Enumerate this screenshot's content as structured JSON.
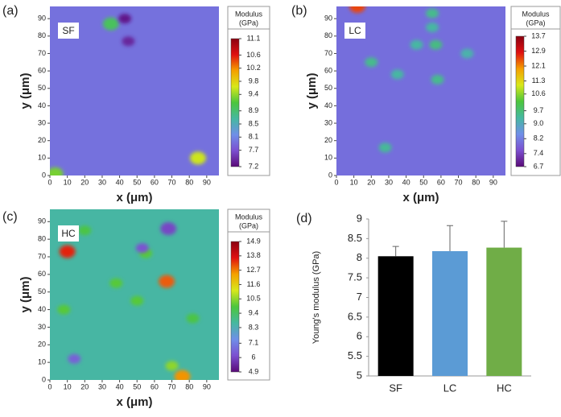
{
  "chart_data": [
    {
      "type": "heatmap",
      "panel_label": "(a)",
      "label": "SF",
      "xlabel": "x (μm)",
      "ylabel": "y (μm)",
      "xlim": [
        0,
        97
      ],
      "ylim": [
        0,
        97
      ],
      "xticks": [
        0,
        10,
        20,
        30,
        40,
        50,
        60,
        70,
        80,
        90
      ],
      "yticks": [
        0,
        10,
        20,
        30,
        40,
        50,
        60,
        70,
        80,
        90
      ],
      "colorbar_title": [
        "Modulus",
        "(GPa)"
      ],
      "clim": [
        7.2,
        11.1
      ],
      "colorbar_ticks": [
        7.2,
        7.7,
        8.1,
        8.5,
        8.9,
        9.4,
        9.8,
        10.2,
        10.6,
        11.1
      ],
      "colormap": [
        "#5a0a78",
        "#7b4fd0",
        "#6f8fe8",
        "#45b8a0",
        "#4cc63c",
        "#d8e81a",
        "#f5a000",
        "#e01010",
        "#8a0010"
      ],
      "base_value": 7.95,
      "spots": {
        "x": [
          35,
          43,
          45,
          85,
          3
        ],
        "y": [
          87,
          90,
          77,
          10,
          1
        ],
        "values": [
          9.0,
          7.3,
          7.4,
          9.6,
          9.3
        ]
      }
    },
    {
      "type": "heatmap",
      "panel_label": "(b)",
      "label": "LC",
      "xlabel": "x (μm)",
      "ylabel": "y (μm)",
      "xlim": [
        0,
        97
      ],
      "ylim": [
        0,
        97
      ],
      "xticks": [
        0,
        10,
        20,
        30,
        40,
        50,
        60,
        70,
        80,
        90
      ],
      "yticks": [
        0,
        10,
        20,
        30,
        40,
        50,
        60,
        70,
        80,
        90
      ],
      "colorbar_title": [
        "Modulus",
        "(GPa)"
      ],
      "clim": [
        6.7,
        13.7
      ],
      "colorbar_ticks": [
        6.7,
        7.4,
        8.2,
        {
          "value": 9,
          "label": "9.0"
        },
        9.7,
        10.6,
        11.3,
        12.1,
        12.9,
        13.7
      ],
      "colormap": [
        "#5a0a78",
        "#7b4fd0",
        "#6f8fe8",
        "#45b8a0",
        "#4cc63c",
        "#d8e81a",
        "#f5a000",
        "#e01010",
        "#8a0010"
      ],
      "base_value": 8.0,
      "spots": {
        "x": [
          12,
          55,
          46,
          57,
          55,
          20,
          35,
          58,
          75,
          28
        ],
        "y": [
          97,
          93,
          75,
          75,
          85,
          65,
          58,
          55,
          70,
          16
        ],
        "values": [
          12.5,
          9.5,
          9.3,
          9.6,
          9.3,
          9.5,
          9.3,
          9.5,
          9.2,
          9.4
        ]
      }
    },
    {
      "type": "heatmap",
      "panel_label": "(c)",
      "label": "HC",
      "xlabel": "x (μm)",
      "ylabel": "y (μm)",
      "xlim": [
        0,
        97
      ],
      "ylim": [
        0,
        97
      ],
      "xticks": [
        0,
        10,
        20,
        30,
        40,
        50,
        60,
        70,
        80,
        90
      ],
      "yticks": [
        0,
        10,
        20,
        30,
        40,
        50,
        60,
        70,
        80,
        90
      ],
      "colorbar_title": [
        "Modulus",
        "(GPa)"
      ],
      "clim": [
        4.9,
        14.9
      ],
      "colorbar_ticks": [
        4.9,
        6.0,
        7.1,
        8.3,
        9.4,
        10.5,
        11.6,
        12.7,
        13.8,
        14.9
      ],
      "colormap": [
        "#5a0a78",
        "#7b4fd0",
        "#6f8fe8",
        "#45b8a0",
        "#4cc63c",
        "#d8e81a",
        "#f5a000",
        "#e01010",
        "#8a0010"
      ],
      "base_value": 8.6,
      "spots": {
        "x": [
          10,
          67,
          70,
          76,
          55,
          8,
          50,
          38,
          82,
          20,
          53,
          68,
          14
        ],
        "y": [
          73,
          56,
          8,
          2,
          72,
          40,
          45,
          55,
          35,
          85,
          75,
          86,
          12
        ],
        "values": [
          13.5,
          13.0,
          10.5,
          12.5,
          10,
          10,
          10,
          10,
          9.8,
          9.8,
          6.2,
          6.0,
          6.5
        ]
      }
    },
    {
      "type": "bar",
      "panel_label": "(d)",
      "ylabel": "Young's modulus (GPa)",
      "categories": [
        "SF",
        "LC",
        "HC"
      ],
      "values": [
        8.05,
        8.18,
        8.27
      ],
      "errors": [
        0.25,
        0.65,
        0.67
      ],
      "colors": [
        "#000000",
        "#5b9bd5",
        "#70ad47"
      ],
      "ylim": [
        5,
        9
      ],
      "yticks": [
        5,
        5.5,
        6,
        6.5,
        7,
        7.5,
        8,
        8.5,
        9
      ]
    }
  ]
}
